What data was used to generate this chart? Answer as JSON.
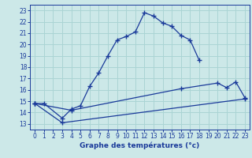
{
  "title": "Graphe des températures (°c)",
  "background_color": "#cce8e8",
  "grid_color": "#aad4d4",
  "line_color": "#1a3a9a",
  "x_ticks": [
    0,
    1,
    2,
    3,
    4,
    5,
    6,
    7,
    8,
    9,
    10,
    11,
    12,
    13,
    14,
    15,
    16,
    17,
    18,
    19,
    20,
    21,
    22,
    23
  ],
  "y_ticks": [
    13,
    14,
    15,
    16,
    17,
    18,
    19,
    20,
    21,
    22,
    23
  ],
  "xlim": [
    -0.5,
    23.5
  ],
  "ylim": [
    12.5,
    23.5
  ],
  "line1_x": [
    0,
    1,
    3,
    4,
    5,
    6,
    7,
    8,
    9,
    10,
    11,
    12,
    13,
    14,
    15,
    16,
    17,
    18
  ],
  "line1_y": [
    14.8,
    14.8,
    13.5,
    14.3,
    14.6,
    16.3,
    17.5,
    19.0,
    20.4,
    20.7,
    21.1,
    22.8,
    22.5,
    21.9,
    21.6,
    20.8,
    20.4,
    18.6
  ],
  "line2_x": [
    0,
    4,
    16,
    20,
    21,
    22,
    23
  ],
  "line2_y": [
    14.8,
    14.2,
    16.1,
    16.6,
    16.2,
    16.7,
    15.3
  ],
  "line3_x": [
    0,
    3,
    23
  ],
  "line3_y": [
    14.8,
    13.1,
    15.2
  ]
}
